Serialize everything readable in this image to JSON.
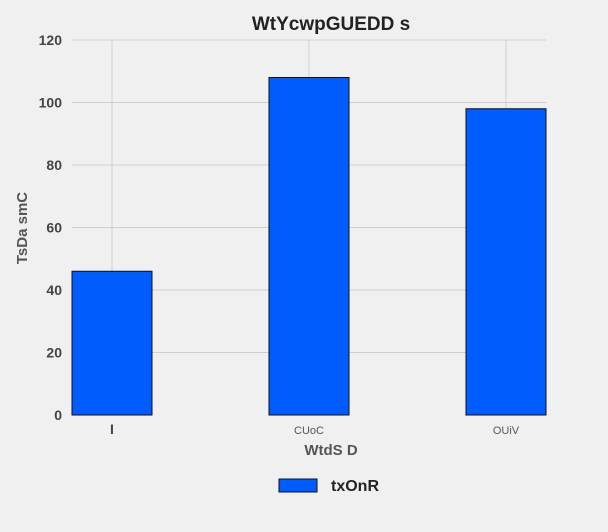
{
  "chart_data": {
    "type": "bar",
    "title": "WtYcwpGUEDD s",
    "xlabel": "WtdS D",
    "ylabel": "TsDa smC",
    "categories": [
      "I",
      "CUoC",
      "OUiV"
    ],
    "series": [
      {
        "name": "txOnR",
        "values": [
          46,
          108,
          98
        ]
      }
    ],
    "ylim": [
      0,
      120
    ],
    "yticks": [
      0,
      20,
      40,
      60,
      80,
      100,
      120
    ],
    "grid": true,
    "legend_position": "bottom-center",
    "colors": {
      "bar": "#005cff",
      "bar_edge": "#111111",
      "background": "#f0f0f0",
      "grid": "#cfcfcf"
    }
  }
}
